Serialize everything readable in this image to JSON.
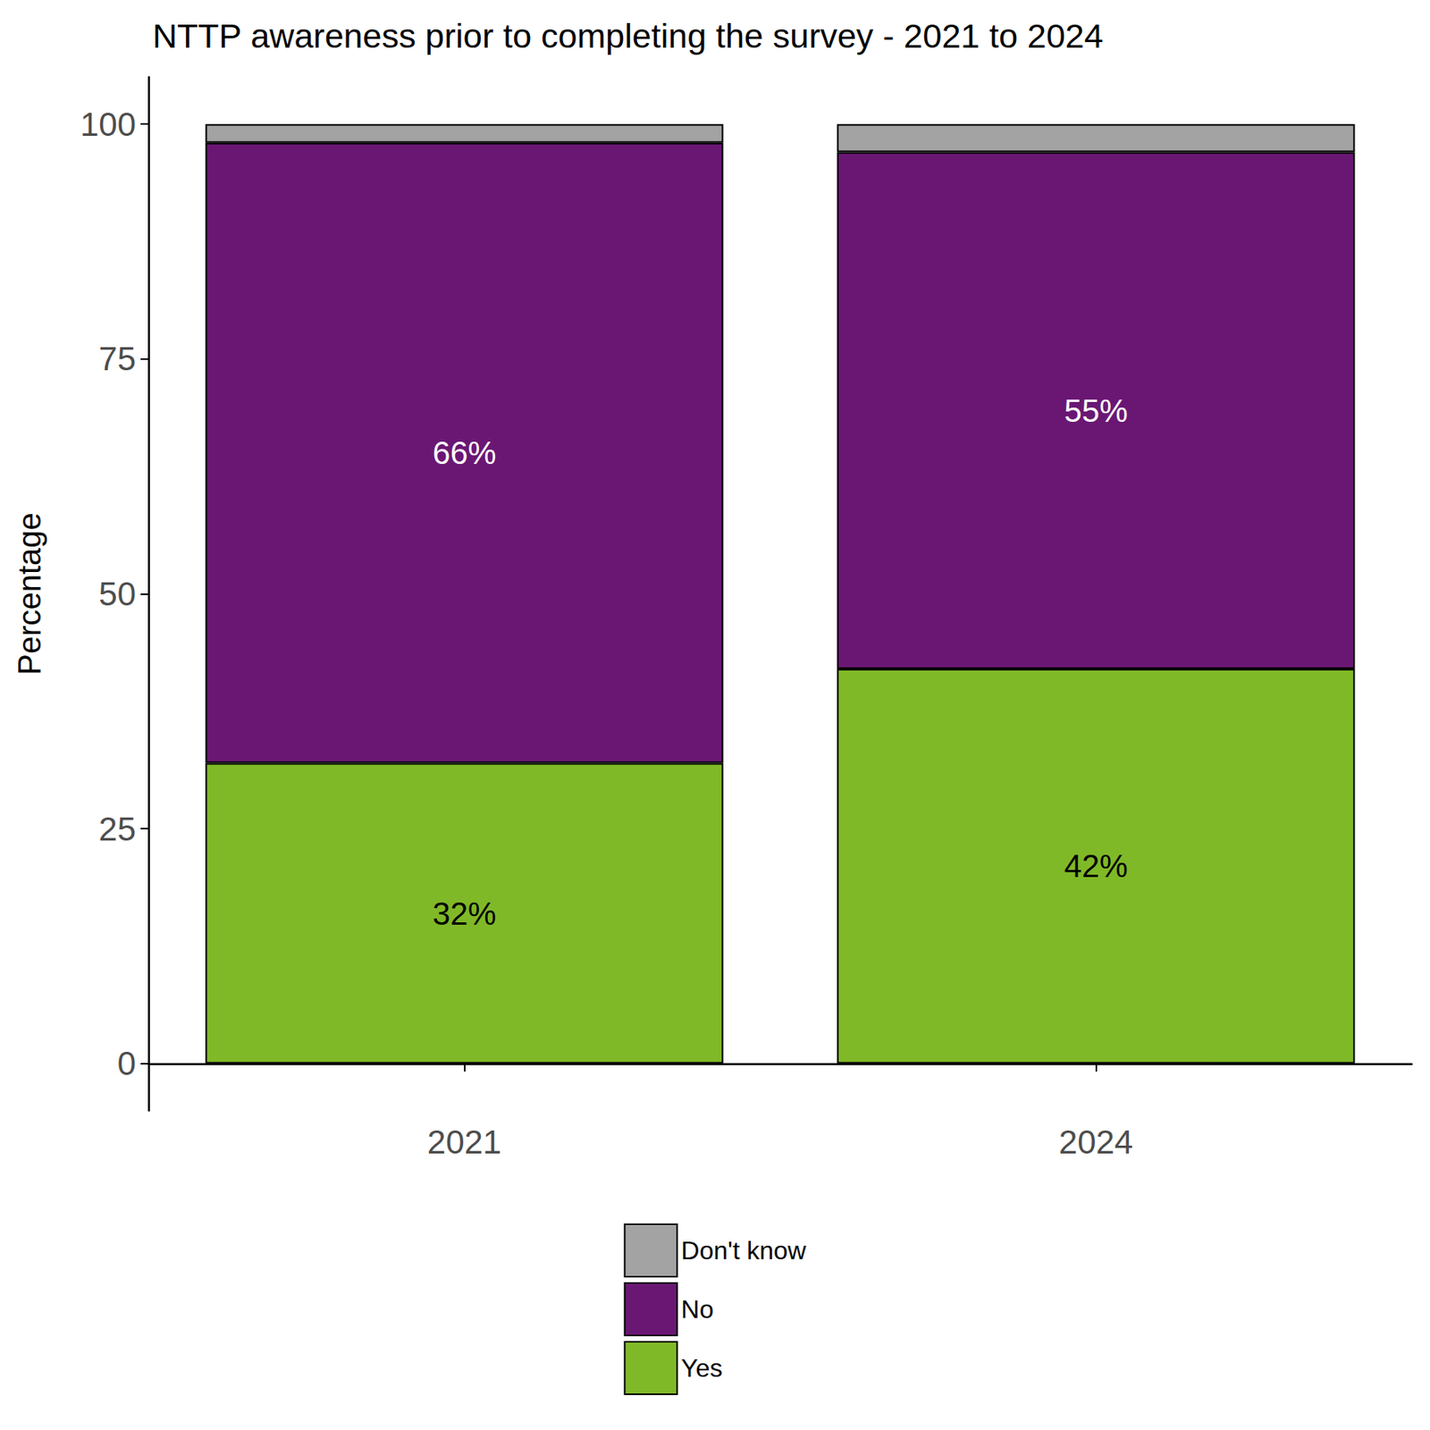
{
  "chart_data": {
    "type": "bar",
    "title": "NTTP awareness prior to completing the survey - 2021 to 2024",
    "y_label": "Percentage",
    "categories": [
      "2021",
      "2024"
    ],
    "series": [
      {
        "name": "Yes",
        "color": "#80B927",
        "values": [
          32,
          42
        ],
        "value_labels": [
          "32%",
          "42%"
        ]
      },
      {
        "name": "No",
        "color": "#6A1774",
        "values": [
          66,
          55
        ],
        "value_labels": [
          "66%",
          "55%"
        ]
      },
      {
        "name": "Don't know",
        "color": "#A3A3A3",
        "values": [
          2,
          3
        ],
        "value_labels": [
          null,
          null
        ]
      }
    ],
    "ylim": [
      -5,
      105
    ],
    "yticks": [
      0,
      25,
      50,
      75,
      100
    ],
    "stacked": true,
    "data_labels": true,
    "grid": false,
    "legend": "bottom"
  }
}
